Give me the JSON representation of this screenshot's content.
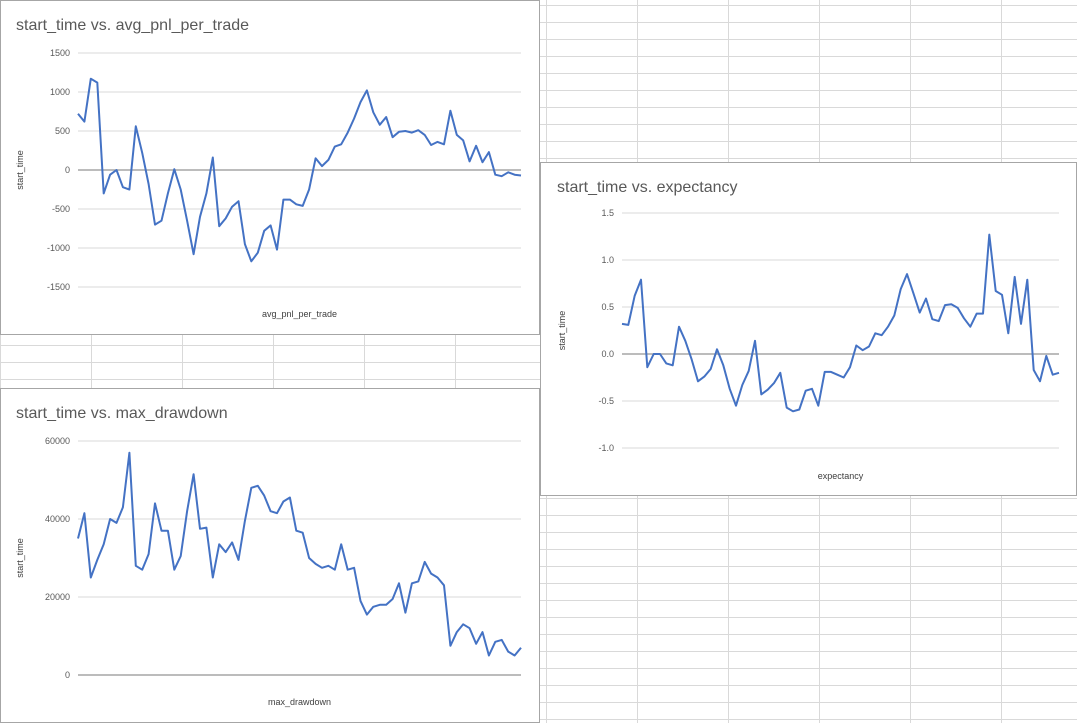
{
  "chart_data": [
    {
      "type": "line",
      "title": "start_time vs. avg_pnl_per_trade",
      "xlabel": "avg_pnl_per_trade",
      "ylabel": "start_time",
      "ylim": [
        -1500,
        1500
      ],
      "ticks": [
        "1500",
        "1000",
        "500",
        "0",
        "-500",
        "-1000",
        "-1500"
      ],
      "grid": true,
      "series": [
        {
          "color": "#4472c4",
          "values": [
            720,
            620,
            1170,
            1120,
            -300,
            -60,
            0,
            -220,
            -250,
            560,
            220,
            -180,
            -700,
            -650,
            -300,
            10,
            -250,
            -650,
            -1080,
            -600,
            -300,
            160,
            -720,
            -620,
            -470,
            -400,
            -950,
            -1170,
            -1060,
            -780,
            -710,
            -1020,
            -380,
            -380,
            -440,
            -460,
            -250,
            150,
            50,
            130,
            300,
            330,
            480,
            660,
            870,
            1020,
            740,
            580,
            680,
            420,
            490,
            500,
            480,
            510,
            450,
            320,
            360,
            330,
            760,
            450,
            380,
            110,
            310,
            100,
            230,
            -60,
            -80,
            -30,
            -60,
            -70
          ]
        }
      ]
    },
    {
      "type": "line",
      "title": "start_time vs. expectancy",
      "xlabel": "expectancy",
      "ylabel": "start_time",
      "ylim": [
        -1.0,
        1.5
      ],
      "ticks": [
        "1.5",
        "1.0",
        "0.5",
        "0.0",
        "-0.5",
        "-1.0"
      ],
      "grid": true,
      "series": [
        {
          "color": "#4472c4",
          "values": [
            0.32,
            0.31,
            0.62,
            0.79,
            -0.14,
            0.0,
            0.0,
            -0.1,
            -0.12,
            0.29,
            0.14,
            -0.06,
            -0.29,
            -0.24,
            -0.16,
            0.05,
            -0.12,
            -0.37,
            -0.55,
            -0.33,
            -0.18,
            0.14,
            -0.43,
            -0.38,
            -0.31,
            -0.2,
            -0.57,
            -0.61,
            -0.59,
            -0.39,
            -0.37,
            -0.55,
            -0.19,
            -0.19,
            -0.22,
            -0.25,
            -0.14,
            0.09,
            0.04,
            0.08,
            0.22,
            0.2,
            0.29,
            0.41,
            0.69,
            0.85,
            0.65,
            0.44,
            0.59,
            0.37,
            0.35,
            0.52,
            0.53,
            0.49,
            0.38,
            0.29,
            0.43,
            0.43,
            1.27,
            0.67,
            0.63,
            0.22,
            0.82,
            0.32,
            0.79,
            -0.17,
            -0.29,
            -0.02,
            -0.22,
            -0.2
          ]
        }
      ]
    },
    {
      "type": "line",
      "title": "start_time vs. max_drawdown",
      "xlabel": "max_drawdown",
      "ylabel": "start_time",
      "ylim": [
        0,
        60000
      ],
      "ticks": [
        "60000",
        "40000",
        "20000",
        "0"
      ],
      "grid": true,
      "series": [
        {
          "color": "#4472c4",
          "values": [
            35000,
            41500,
            25000,
            29500,
            33500,
            40000,
            39000,
            43000,
            57000,
            28000,
            27000,
            31000,
            44000,
            37000,
            37000,
            27000,
            30500,
            42000,
            51500,
            37500,
            37800,
            25000,
            33500,
            31500,
            34000,
            29500,
            39500,
            48000,
            48500,
            46000,
            42000,
            41500,
            44500,
            45500,
            37000,
            36500,
            30000,
            28500,
            27500,
            28000,
            27000,
            33500,
            27000,
            27500,
            19000,
            15500,
            17500,
            18000,
            18000,
            19500,
            23500,
            16000,
            23500,
            24000,
            29000,
            26000,
            25000,
            23000,
            7500,
            11000,
            13000,
            12000,
            8000,
            11000,
            5000,
            8500,
            9000,
            6000,
            5000,
            7000
          ]
        }
      ]
    }
  ]
}
